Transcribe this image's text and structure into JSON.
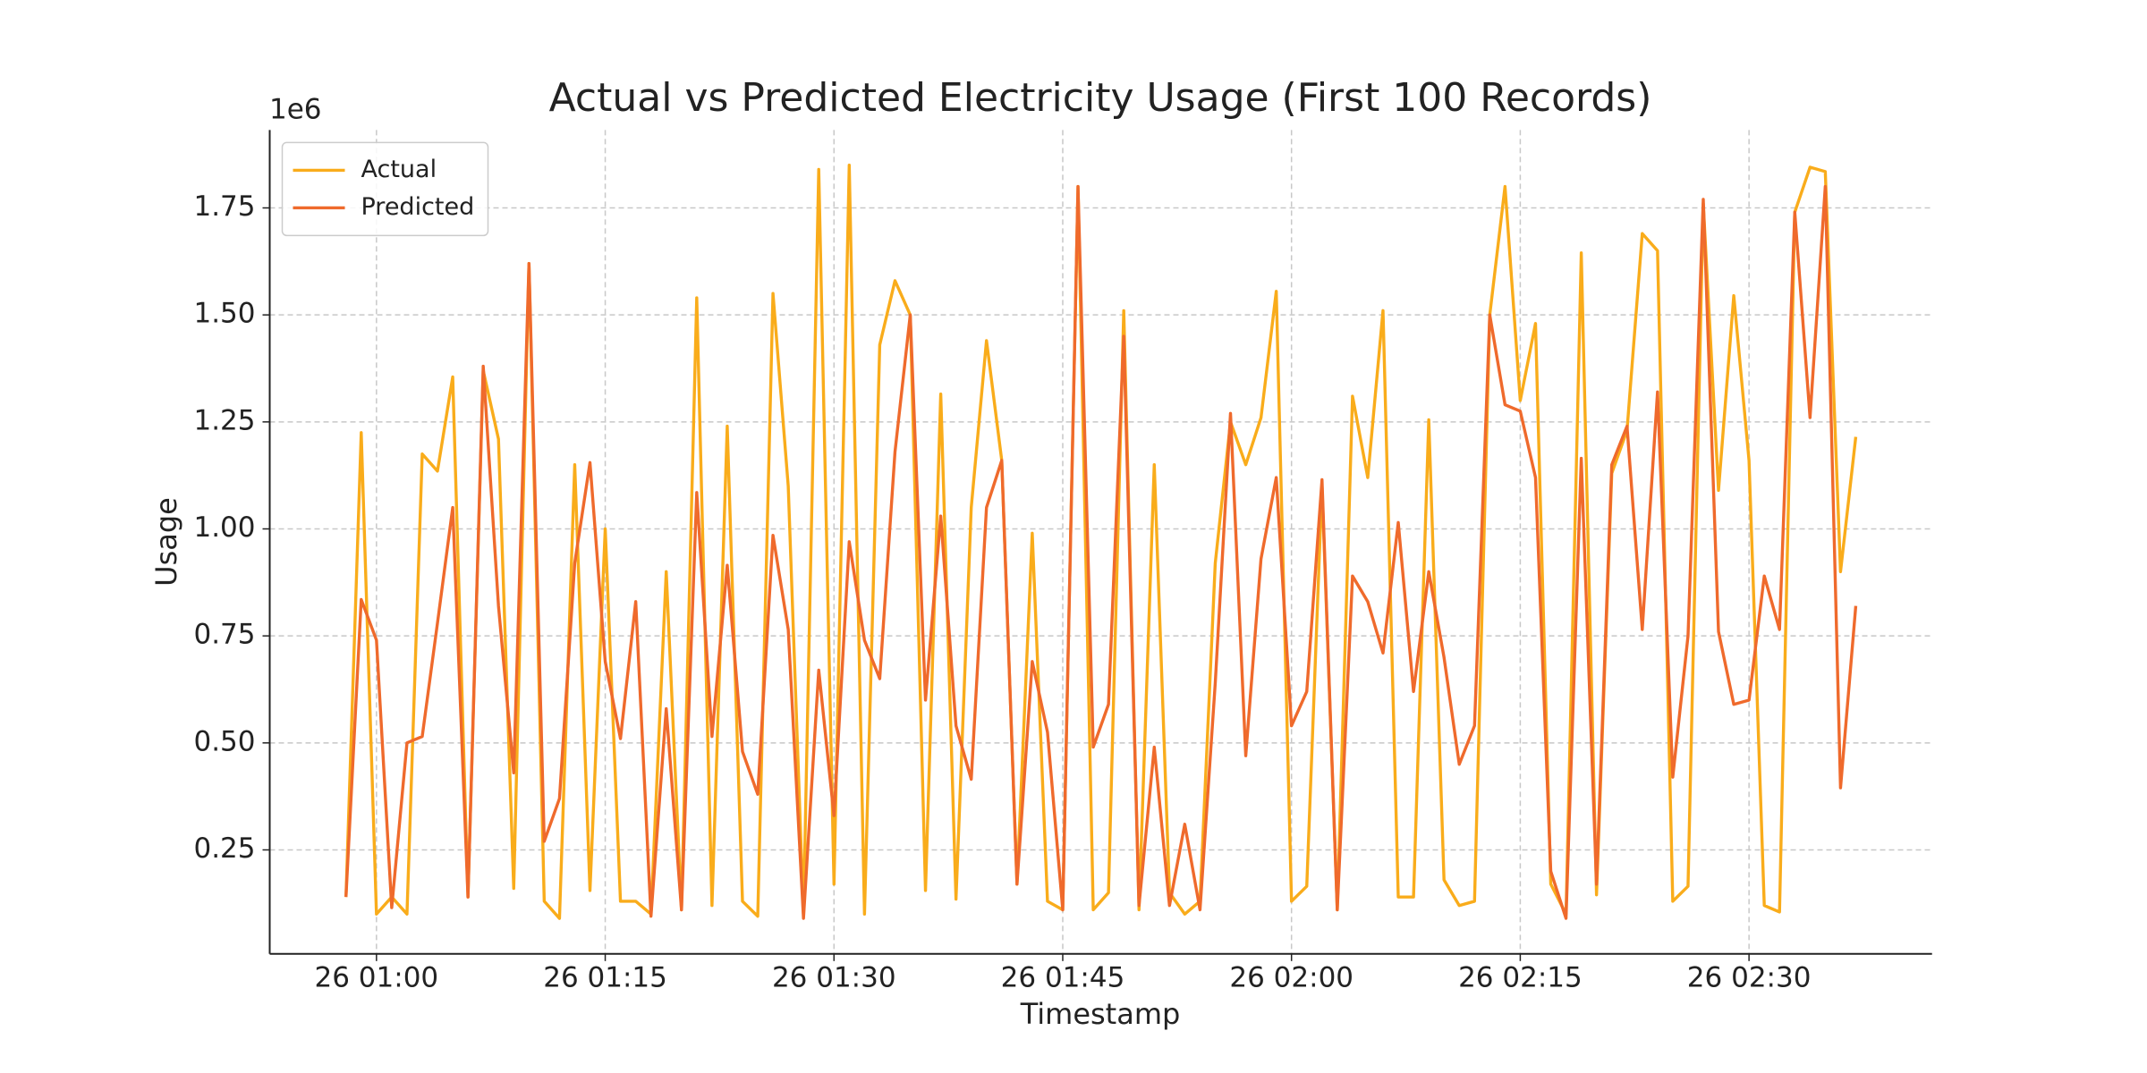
{
  "chart_data": {
    "type": "line",
    "title": "Actual vs Predicted Electricity Usage (First 100 Records)",
    "x_label": "Timestamp",
    "y_label": "Usage",
    "y_offset_label": "1e6",
    "x": [
      "26 00:58",
      "26 00:59",
      "26 01:00",
      "26 01:01",
      "26 01:02",
      "26 01:03",
      "26 01:04",
      "26 01:05",
      "26 01:06",
      "26 01:07",
      "26 01:08",
      "26 01:09",
      "26 01:10",
      "26 01:11",
      "26 01:12",
      "26 01:13",
      "26 01:14",
      "26 01:15",
      "26 01:16",
      "26 01:17",
      "26 01:18",
      "26 01:19",
      "26 01:20",
      "26 01:21",
      "26 01:22",
      "26 01:23",
      "26 01:24",
      "26 01:25",
      "26 01:26",
      "26 01:27",
      "26 01:28",
      "26 01:29",
      "26 01:30",
      "26 01:31",
      "26 01:32",
      "26 01:33",
      "26 01:34",
      "26 01:35",
      "26 01:36",
      "26 01:37",
      "26 01:38",
      "26 01:39",
      "26 01:40",
      "26 01:41",
      "26 01:42",
      "26 01:43",
      "26 01:44",
      "26 01:45",
      "26 01:46",
      "26 01:47",
      "26 01:48",
      "26 01:49",
      "26 01:50",
      "26 01:51",
      "26 01:52",
      "26 01:53",
      "26 01:54",
      "26 01:55",
      "26 01:56",
      "26 01:57",
      "26 01:58",
      "26 01:59",
      "26 02:00",
      "26 02:01",
      "26 02:02",
      "26 02:03",
      "26 02:04",
      "26 02:05",
      "26 02:06",
      "26 02:07",
      "26 02:08",
      "26 02:09",
      "26 02:10",
      "26 02:11",
      "26 02:12",
      "26 02:13",
      "26 02:14",
      "26 02:15",
      "26 02:16",
      "26 02:17",
      "26 02:18",
      "26 02:19",
      "26 02:20",
      "26 02:21",
      "26 02:22",
      "26 02:23",
      "26 02:24",
      "26 02:25",
      "26 02:26",
      "26 02:27",
      "26 02:28",
      "26 02:29",
      "26 02:30",
      "26 02:31",
      "26 02:32",
      "26 02:33",
      "26 02:34",
      "26 02:35",
      "26 02:36",
      "26 02:37"
    ],
    "series": [
      {
        "name": "Actual",
        "color": "#f9ac1b",
        "values": [
          0.14,
          1.225,
          0.1,
          0.14,
          0.1,
          1.175,
          1.135,
          1.355,
          0.14,
          1.37,
          1.21,
          0.16,
          1.62,
          0.13,
          0.09,
          1.15,
          0.155,
          1.0,
          0.13,
          0.13,
          0.1,
          0.9,
          0.11,
          1.54,
          0.12,
          1.24,
          0.13,
          0.095,
          1.55,
          1.1,
          0.1,
          1.84,
          0.17,
          1.85,
          0.1,
          1.43,
          1.58,
          1.5,
          0.155,
          1.315,
          0.135,
          1.05,
          1.44,
          1.16,
          0.17,
          0.99,
          0.13,
          0.11,
          1.8,
          0.11,
          0.15,
          1.51,
          0.11,
          1.15,
          0.15,
          0.1,
          0.13,
          0.92,
          1.25,
          1.15,
          1.26,
          1.555,
          0.13,
          0.165,
          1.1,
          0.11,
          1.31,
          1.12,
          1.51,
          0.14,
          0.14,
          1.255,
          0.18,
          0.12,
          0.13,
          1.5,
          1.8,
          1.3,
          1.48,
          0.17,
          0.1,
          1.645,
          0.145,
          1.13,
          1.23,
          1.69,
          1.65,
          0.13,
          0.165,
          1.76,
          1.09,
          1.545,
          1.16,
          0.12,
          0.105,
          1.74,
          1.845,
          1.835,
          0.9,
          1.215
        ]
      },
      {
        "name": "Predicted",
        "color": "#ef6a2c",
        "values": [
          0.14,
          0.835,
          0.74,
          0.115,
          0.5,
          0.515,
          0.78,
          1.05,
          0.14,
          1.38,
          0.82,
          0.43,
          1.62,
          0.27,
          0.37,
          0.92,
          1.155,
          0.69,
          0.51,
          0.83,
          0.095,
          0.58,
          0.11,
          1.085,
          0.515,
          0.915,
          0.48,
          0.38,
          0.985,
          0.765,
          0.09,
          0.67,
          0.33,
          0.97,
          0.74,
          0.65,
          1.18,
          1.5,
          0.6,
          1.03,
          0.54,
          0.415,
          1.05,
          1.16,
          0.17,
          0.69,
          0.525,
          0.11,
          1.8,
          0.49,
          0.59,
          1.45,
          0.12,
          0.49,
          0.12,
          0.31,
          0.11,
          0.64,
          1.27,
          0.47,
          0.93,
          1.12,
          0.54,
          0.62,
          1.115,
          0.11,
          0.89,
          0.83,
          0.71,
          1.015,
          0.62,
          0.9,
          0.7,
          0.45,
          0.54,
          1.5,
          1.29,
          1.275,
          1.12,
          0.2,
          0.09,
          1.165,
          0.17,
          1.15,
          1.24,
          0.765,
          1.32,
          0.42,
          0.75,
          1.77,
          0.76,
          0.59,
          0.6,
          0.89,
          0.765,
          1.74,
          1.26,
          1.8,
          0.395,
          0.82
        ]
      }
    ],
    "xlim": [
      "26 00:53",
      "26 02:42"
    ],
    "xticks": [
      "26 01:00",
      "26 01:15",
      "26 01:30",
      "26 01:45",
      "26 02:00",
      "26 02:15",
      "26 02:30"
    ],
    "ylim": [
      0.007,
      1.932
    ],
    "yticks": [
      0.25,
      {
        "value": 0.5,
        "label": "0.50"
      },
      0.75,
      {
        "value": 1.0,
        "label": "1.00"
      },
      1.25,
      {
        "value": 1.5,
        "label": "1.50"
      },
      1.75
    ],
    "grid": true,
    "legend": "upper left"
  }
}
